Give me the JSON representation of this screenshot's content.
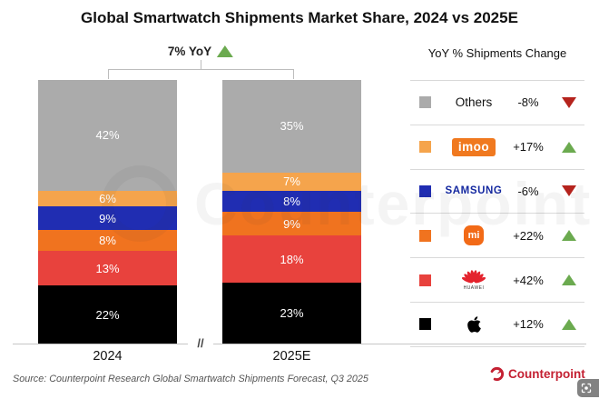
{
  "title": "Global Smartwatch Shipments Market Share, 2024 vs 2025E",
  "annotation": {
    "label": "7% YoY",
    "trend": "up"
  },
  "legend_header": "YoY % Shipments Change",
  "axis_break": "//",
  "source": "Source: Counterpoint Research Global Smartwatch Shipments Forecast, Q3 2025",
  "watermark": "Counterpoint",
  "footer_brand": "Counterpoint",
  "colors": {
    "up_triangle": "#6BAA4F",
    "down_triangle": "#B5231D",
    "brand_red": "#C42032",
    "separator": "#d9d9d9",
    "samsung_wordmark": "#1428A0",
    "imoo_badge": "#F0791F",
    "mi_badge": "#F26A17",
    "huawei_logo": "#E4232D"
  },
  "chart_data": {
    "type": "bar",
    "stacked": true,
    "unit": "%",
    "title": "Global Smartwatch Shipments Market Share, 2024 vs 2025E",
    "total_change": "7% YoY",
    "categories": [
      "2024",
      "2025E"
    ],
    "series": [
      {
        "name": "Others",
        "color": "#ABABAB",
        "values": [
          42,
          35
        ],
        "change": "-8%",
        "trend": "down",
        "logo": "plain"
      },
      {
        "name": "imoo",
        "color": "#F5A44C",
        "values": [
          6,
          7
        ],
        "change": "+17%",
        "trend": "up",
        "logo": "imoo",
        "logo_text": "imoo"
      },
      {
        "name": "Samsung",
        "color": "#202DB2",
        "values": [
          9,
          8
        ],
        "change": "-6%",
        "trend": "down",
        "logo": "samsung",
        "logo_text": "SAMSUNG"
      },
      {
        "name": "Xiaomi",
        "color": "#F0731F",
        "values": [
          8,
          9
        ],
        "change": "+22%",
        "trend": "up",
        "logo": "mi",
        "logo_text": "mi"
      },
      {
        "name": "Huawei",
        "color": "#E8423D",
        "values": [
          13,
          18
        ],
        "change": "+42%",
        "trend": "up",
        "logo": "huawei",
        "logo_text": "HUAWEI"
      },
      {
        "name": "Apple",
        "color": "#000000",
        "values": [
          22,
          23
        ],
        "change": "+12%",
        "trend": "up",
        "logo": "apple"
      }
    ],
    "legend_position": "right",
    "ylim": [
      0,
      100
    ],
    "grid": false
  }
}
